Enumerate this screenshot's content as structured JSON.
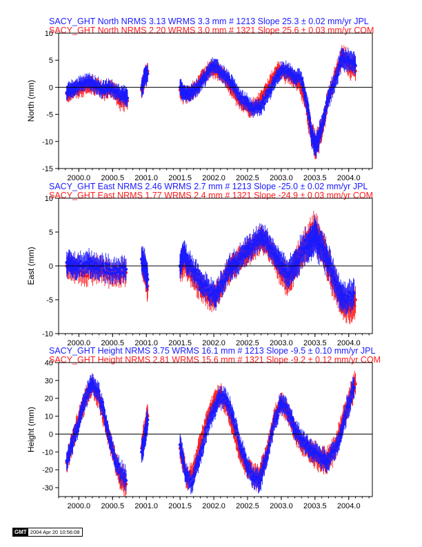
{
  "chart_data": [
    {
      "type": "scatter",
      "title_lines": [
        {
          "prefix": "SACY_GHT North NRMS 3.13 WRMS  3.3 mm # 1213 Slope   25.3 ±  0.02 mm/yr JPL",
          "color": "#1a1aff"
        },
        {
          "prefix": "SACY_GHT North NRMS 2.20 WRMS  3.0 mm # 1321 Slope   25.6 ±  0.03 mm/yr COM",
          "color": "#ff1a1a"
        }
      ],
      "ylabel": "North (mm)",
      "xlim": [
        1999.7,
        2004.35
      ],
      "ylim": [
        -15,
        10
      ],
      "yticks": [
        -15,
        -10,
        -5,
        0,
        5,
        10
      ],
      "xticks": [
        2000.0,
        2000.5,
        2001.0,
        2001.5,
        2002.0,
        2002.5,
        2003.0,
        2003.5,
        2004.0
      ],
      "xtick_labels": [
        "2000.0",
        "2000.5",
        "2001.0",
        "2001.5",
        "2002.0",
        "2002.5",
        "2003.0",
        "2003.5",
        "2004.0"
      ],
      "zero_line": true,
      "series": [
        {
          "color": "#ff1a1a",
          "x": [
            1999.82,
            1999.9,
            2000.0,
            2000.1,
            2000.2,
            2000.3,
            2000.4,
            2000.5,
            2000.6,
            2000.72,
            2000.93,
            2000.98,
            2001.02,
            2001.5,
            2001.55,
            2001.65,
            2001.75,
            2001.85,
            2001.95,
            2002.05,
            2002.15,
            2002.25,
            2002.35,
            2002.45,
            2002.55,
            2002.65,
            2002.75,
            2002.85,
            2002.95,
            2003.05,
            2003.15,
            2003.25,
            2003.35,
            2003.42,
            2003.5,
            2003.6,
            2003.7,
            2003.8,
            2003.9,
            2004.0,
            2004.1
          ],
          "y": [
            -1.2,
            -0.6,
            -0.3,
            0.2,
            0.5,
            -0.2,
            -0.8,
            -0.3,
            -2.3,
            -2.5,
            -0.5,
            2,
            3,
            -0.5,
            -1.5,
            -1,
            0,
            2,
            3.5,
            3,
            2,
            0,
            -2,
            -3,
            -4,
            -3,
            -1,
            1,
            3.5,
            2.5,
            2,
            1,
            -2,
            -7,
            -11,
            -8,
            -2,
            2,
            6,
            4,
            3
          ],
          "err": [
            1.3,
            1.3,
            1.3,
            1.3,
            1.3,
            1.3,
            1.3,
            1.3,
            1.6,
            1.6,
            1.5,
            1.5,
            1.5,
            1.5,
            1.3,
            1.3,
            1.3,
            1.3,
            1.3,
            1.3,
            1.3,
            1.3,
            1.3,
            1.3,
            1.3,
            1.3,
            1.3,
            1.3,
            1.3,
            1.3,
            1.3,
            1.3,
            1.5,
            1.8,
            2.2,
            2,
            1.6,
            1.6,
            1.8,
            1.8,
            1.8
          ]
        },
        {
          "color": "#1a1aff",
          "x": [
            1999.82,
            1999.88,
            1999.95,
            2000.05,
            2000.15,
            2000.25,
            2000.35,
            2000.45,
            2000.55,
            2000.65,
            2000.72,
            2000.93,
            2000.98,
            2001.02,
            2001.5,
            2001.55,
            2001.62,
            2001.7,
            2001.8,
            2001.9,
            2002.0,
            2002.1,
            2002.2,
            2002.3,
            2002.4,
            2002.5,
            2002.6,
            2002.7,
            2002.8,
            2002.9,
            2003.0,
            2003.1,
            2003.2,
            2003.3,
            2003.38,
            2003.45,
            2003.52,
            2003.6,
            2003.7,
            2003.8,
            2003.9,
            2004.0,
            2004.1
          ],
          "y": [
            -1,
            -0.5,
            0,
            0.5,
            1,
            0.5,
            -0.5,
            0,
            -1,
            -1.5,
            -2,
            -0.2,
            2,
            2.5,
            0,
            -1,
            -1,
            -0.5,
            0.5,
            2.5,
            4,
            3,
            1.5,
            0,
            -2,
            -3,
            -4,
            -3.5,
            -1.5,
            1,
            3.5,
            3,
            2,
            1.5,
            -3,
            -9,
            -11,
            -7,
            -2,
            1.5,
            5.5,
            5,
            4
          ],
          "err": [
            1.3,
            1.3,
            1.3,
            1.3,
            1.3,
            1.3,
            1.3,
            1.3,
            1.3,
            1.4,
            1.6,
            1.5,
            1.5,
            1.5,
            1.5,
            1.3,
            1.3,
            1.3,
            1.3,
            1.3,
            1.3,
            1.3,
            1.3,
            1.3,
            1.3,
            1.3,
            1.3,
            1.3,
            1.3,
            1.3,
            1.3,
            1.3,
            1.3,
            1.3,
            1.6,
            1.8,
            2,
            1.8,
            1.6,
            1.6,
            1.8,
            1.8,
            1.8
          ]
        }
      ]
    },
    {
      "type": "scatter",
      "title_lines": [
        {
          "prefix": "SACY_GHT East NRMS 2.46 WRMS  2.7 mm # 1213 Slope  -25.0 ±  0.02 mm/yr JPL",
          "color": "#1a1aff"
        },
        {
          "prefix": "SACY_GHT East NRMS 1.77 WRMS  2.4 mm # 1321 Slope  -24.9 ±  0.03 mm/yr COM",
          "color": "#ff1a1a"
        }
      ],
      "ylabel": "East (mm)",
      "xlim": [
        1999.7,
        2004.35
      ],
      "ylim": [
        -10,
        10
      ],
      "yticks": [
        -10,
        -5,
        0,
        5,
        10
      ],
      "xticks": [
        2000.0,
        2000.5,
        2001.0,
        2001.5,
        2002.0,
        2002.5,
        2003.0,
        2003.5,
        2004.0
      ],
      "xtick_labels": [
        "2000.0",
        "2000.5",
        "2001.0",
        "2001.5",
        "2002.0",
        "2002.5",
        "2003.0",
        "2003.5",
        "2004.0"
      ],
      "zero_line": true,
      "series": [
        {
          "color": "#ff1a1a",
          "x": [
            1999.82,
            1999.95,
            2000.1,
            2000.25,
            2000.4,
            2000.55,
            2000.7,
            2000.93,
            2000.98,
            2001.02,
            2001.5,
            2001.58,
            2001.68,
            2001.8,
            2001.9,
            2002.0,
            2002.1,
            2002.2,
            2002.3,
            2002.4,
            2002.5,
            2002.6,
            2002.7,
            2002.8,
            2002.9,
            2003.0,
            2003.1,
            2003.2,
            2003.3,
            2003.4,
            2003.5,
            2003.6,
            2003.7,
            2003.8,
            2003.9,
            2004.0,
            2004.1
          ],
          "y": [
            0,
            -0.5,
            -1,
            -0.5,
            -1,
            -1.5,
            -1,
            1,
            -1,
            -3,
            0,
            0.5,
            -1.5,
            -3,
            -4,
            -5,
            -3,
            -1,
            0,
            1,
            2,
            3,
            4,
            3,
            1,
            -1,
            -2,
            0,
            2,
            4,
            5,
            3,
            0,
            -3,
            -5,
            -6,
            -5
          ],
          "err": [
            1.6,
            1.6,
            1.6,
            1.6,
            1.6,
            1.6,
            1.6,
            1.8,
            1.8,
            1.8,
            1.8,
            1.6,
            1.6,
            1.6,
            1.6,
            1.6,
            1.6,
            1.6,
            1.6,
            1.6,
            1.6,
            1.6,
            1.6,
            1.6,
            1.6,
            1.8,
            2,
            2,
            2,
            2.2,
            2.4,
            2.2,
            2.2,
            2,
            2,
            2,
            2
          ]
        },
        {
          "color": "#1a1aff",
          "x": [
            1999.82,
            1999.9,
            2000.0,
            2000.12,
            2000.22,
            2000.32,
            2000.45,
            2000.58,
            2000.7,
            2000.93,
            2000.98,
            2001.02,
            2001.5,
            2001.55,
            2001.62,
            2001.72,
            2001.82,
            2001.92,
            2002.02,
            2002.12,
            2002.22,
            2002.32,
            2002.42,
            2002.52,
            2002.62,
            2002.72,
            2002.82,
            2002.92,
            2003.02,
            2003.12,
            2003.22,
            2003.32,
            2003.42,
            2003.5,
            2003.58,
            2003.68,
            2003.78,
            2003.88,
            2003.98,
            2004.08
          ],
          "y": [
            0.5,
            0,
            0,
            0.5,
            0,
            0,
            -0.5,
            -0.5,
            -0.5,
            1,
            0,
            -2,
            0,
            2,
            0.5,
            -1,
            -2.5,
            -3.5,
            -4.5,
            -2.5,
            -0.5,
            0.5,
            1.5,
            2.5,
            3.5,
            4.5,
            3,
            1.5,
            -0.5,
            -1,
            0.5,
            2.5,
            3.5,
            4.5,
            3,
            1,
            -2,
            -4,
            -5,
            -4
          ],
          "err": [
            1.6,
            1.6,
            1.6,
            1.6,
            1.6,
            1.6,
            1.6,
            1.6,
            1.6,
            1.8,
            1.8,
            1.8,
            1.8,
            1.6,
            1.6,
            1.6,
            1.6,
            1.6,
            1.6,
            1.6,
            1.6,
            1.6,
            1.6,
            1.6,
            1.6,
            1.6,
            1.6,
            1.6,
            1.8,
            2,
            2,
            2,
            2.2,
            2.4,
            2.2,
            2,
            2,
            2,
            2,
            2
          ]
        }
      ]
    },
    {
      "type": "scatter",
      "title_lines": [
        {
          "prefix": "SACY_GHT Height NRMS 3.75 WRMS 16.1 mm # 1213 Slope   -9.5 ±  0.10 mm/yr JPL",
          "color": "#1a1aff"
        },
        {
          "prefix": "SACY_GHT Height NRMS 2.81 WRMS 15.6 mm # 1321 Slope   -9.2 ±  0.12 mm/yr COM",
          "color": "#ff1a1a"
        }
      ],
      "ylabel": "Height (mm)",
      "xlim": [
        1999.7,
        2004.35
      ],
      "ylim": [
        -35,
        40
      ],
      "yticks": [
        -30,
        -20,
        -10,
        0,
        10,
        20,
        30,
        40
      ],
      "xticks": [
        2000.0,
        2000.5,
        2001.0,
        2001.5,
        2002.0,
        2002.5,
        2003.0,
        2003.5,
        2004.0
      ],
      "xtick_labels": [
        "2000.0",
        "2000.5",
        "2001.0",
        "2001.5",
        "2002.0",
        "2002.5",
        "2003.0",
        "2003.5",
        "2004.0"
      ],
      "zero_line": true,
      "series": [
        {
          "color": "#ff1a1a",
          "x": [
            1999.82,
            1999.9,
            2000.0,
            2000.1,
            2000.2,
            2000.3,
            2000.4,
            2000.5,
            2000.6,
            2000.7,
            2000.93,
            2000.98,
            2001.02,
            2001.5,
            2001.6,
            2001.7,
            2001.8,
            2001.9,
            2002.0,
            2002.1,
            2002.2,
            2002.3,
            2002.4,
            2002.5,
            2002.6,
            2002.7,
            2002.8,
            2002.9,
            2003.0,
            2003.1,
            2003.2,
            2003.3,
            2003.4,
            2003.5,
            2003.6,
            2003.7,
            2003.8,
            2003.9,
            2004.0,
            2004.1
          ],
          "y": [
            -16,
            -5,
            8,
            20,
            28,
            20,
            5,
            -10,
            -22,
            -28,
            -8,
            2,
            10,
            -8,
            -25,
            -20,
            -5,
            8,
            18,
            22,
            15,
            2,
            -12,
            -20,
            -25,
            -22,
            -8,
            10,
            18,
            12,
            2,
            -5,
            -8,
            -12,
            -15,
            -14,
            -8,
            5,
            18,
            28
          ],
          "err": [
            5,
            5,
            5,
            5,
            5,
            5,
            5,
            5,
            6,
            6,
            6,
            6,
            6,
            6,
            5,
            5,
            5,
            5,
            5,
            5,
            5,
            5,
            5,
            5,
            6,
            6,
            5,
            5,
            5,
            5,
            5,
            5,
            5,
            6,
            6,
            6,
            6,
            6,
            6,
            6
          ]
        },
        {
          "color": "#1a1aff",
          "x": [
            1999.82,
            1999.9,
            2000.0,
            2000.08,
            2000.18,
            2000.28,
            2000.38,
            2000.48,
            2000.58,
            2000.7,
            2000.93,
            2000.98,
            2001.02,
            2001.5,
            2001.58,
            2001.68,
            2001.78,
            2001.88,
            2001.98,
            2002.08,
            2002.18,
            2002.28,
            2002.38,
            2002.48,
            2002.58,
            2002.68,
            2002.78,
            2002.88,
            2002.98,
            2003.08,
            2003.18,
            2003.28,
            2003.38,
            2003.48,
            2003.58,
            2003.68,
            2003.78,
            2003.88,
            2003.98,
            2004.08
          ],
          "y": [
            -15,
            -6,
            6,
            18,
            28,
            25,
            10,
            -6,
            -18,
            -26,
            -10,
            0,
            8,
            -6,
            -22,
            -28,
            -14,
            0,
            12,
            20,
            20,
            10,
            -5,
            -16,
            -24,
            -26,
            -14,
            4,
            16,
            15,
            5,
            -2,
            -6,
            -10,
            -13,
            -15,
            -10,
            0,
            15,
            26
          ],
          "err": [
            5,
            5,
            5,
            5,
            5,
            5,
            5,
            5,
            5,
            6,
            6,
            6,
            6,
            6,
            5,
            5,
            5,
            5,
            5,
            5,
            5,
            5,
            5,
            5,
            5,
            6,
            5,
            5,
            5,
            5,
            5,
            5,
            5,
            5,
            5,
            5,
            5,
            5,
            6,
            6
          ]
        }
      ]
    }
  ],
  "stamp": {
    "logo": "GMT",
    "timestamp": "2004 Apr 20 10:56:08"
  }
}
